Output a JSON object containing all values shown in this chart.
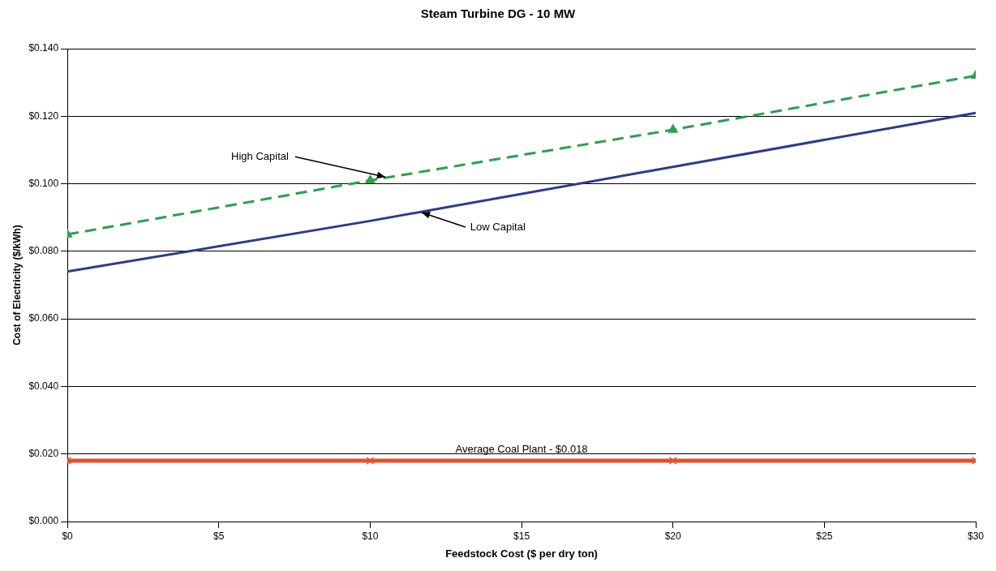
{
  "chart_data": {
    "type": "line",
    "title": "Steam Turbine DG - 10 MW",
    "xlabel": "Feedstock Cost ($ per dry ton)",
    "ylabel": "Cost of Electricity ($/kWh)",
    "x": [
      0,
      10,
      20,
      30
    ],
    "series": [
      {
        "color": "#2e9e4f",
        "values": [
          0.085,
          0.101,
          0.116,
          0.132
        ],
        "line_style": "dashed",
        "marker": "triangle"
      },
      {
        "color": "#2e3a8f",
        "values": [
          0.074,
          0.089,
          0.105,
          0.121
        ],
        "line_style": "solid",
        "marker": "none"
      },
      {
        "color": "#e8502a",
        "values": [
          0.018,
          0.018,
          0.018,
          0.018
        ],
        "line_style": "solid",
        "marker": "cross"
      }
    ],
    "xlim": [
      0,
      30
    ],
    "xticks": [
      {
        "value": 0,
        "label": "$0"
      },
      {
        "value": 5,
        "label": "$5"
      },
      {
        "value": 10,
        "label": "$10"
      },
      {
        "value": 15,
        "label": "$15"
      },
      {
        "value": 20,
        "label": "$20"
      },
      {
        "value": 25,
        "label": "$25"
      },
      {
        "value": 30,
        "label": "$30"
      }
    ],
    "ylim": [
      0,
      0.14
    ],
    "yticks": [
      {
        "value": 0,
        "label": "$0.000"
      },
      {
        "value": 0.02,
        "label": "$0.020"
      },
      {
        "value": 0.04,
        "label": "$0.040"
      },
      {
        "value": 0.06,
        "label": "$0.060"
      },
      {
        "value": 0.08,
        "label": "$0.080"
      },
      {
        "value": 0.1,
        "label": "$0.100"
      },
      {
        "value": 0.12,
        "label": "$0.120"
      },
      {
        "value": 0.14,
        "label": "$0.140"
      }
    ],
    "grid": "y",
    "legend": false,
    "annotations": [
      {
        "text": "High Capital",
        "x": 10.5,
        "y": 0.102
      },
      {
        "text": "Low Capital",
        "x": 11.7,
        "y": 0.0915
      },
      {
        "text": "Average Coal Plant - $0.018",
        "x": 15,
        "y": 0.018
      }
    ]
  }
}
